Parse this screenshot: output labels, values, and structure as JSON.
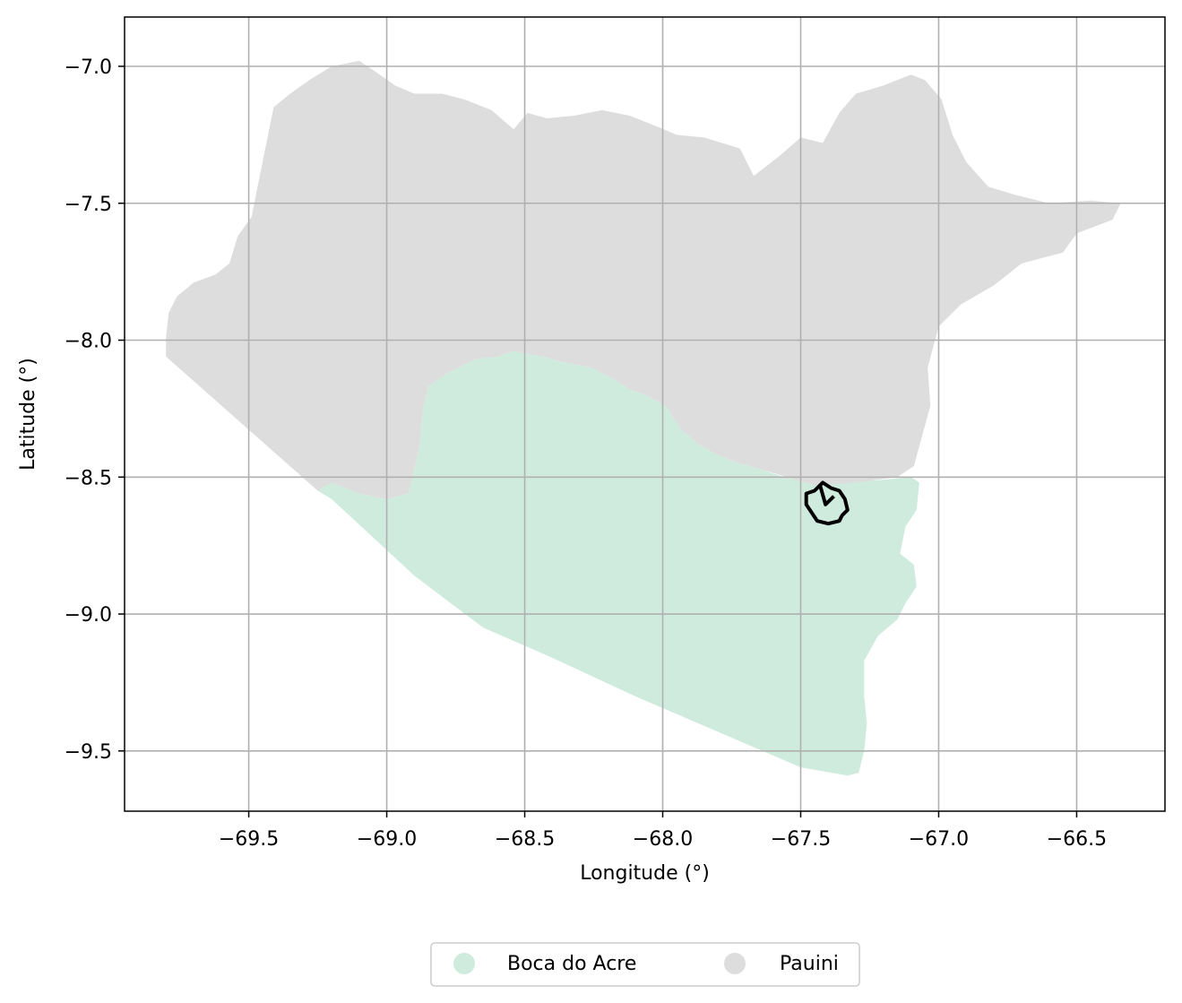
{
  "chart_data": {
    "type": "map",
    "xlabel": "Longitude (°)",
    "ylabel": "Latitude (°)",
    "xlim": [
      -69.95,
      -66.18
    ],
    "ylim": [
      -9.72,
      -6.82
    ],
    "xticks": [
      -69.5,
      -69.0,
      -68.5,
      -68.0,
      -67.5,
      -67.0,
      -66.5
    ],
    "yticks": [
      -7.0,
      -7.5,
      -8.0,
      -8.5,
      -9.0,
      -9.5
    ],
    "xtick_labels": [
      "−69.5",
      "−69.0",
      "−68.5",
      "−68.0",
      "−67.5",
      "−67.0",
      "−66.5"
    ],
    "ytick_labels": [
      "−7.0",
      "−7.5",
      "−8.0",
      "−8.5",
      "−9.0",
      "−9.5"
    ],
    "grid": true,
    "legend_position": "bottom-center",
    "regions": [
      {
        "name": "Boca do Acre",
        "color": "#cfebdd",
        "polygon": [
          [
            -69.2,
            -8.52
          ],
          [
            -69.1,
            -8.56
          ],
          [
            -69.0,
            -8.58
          ],
          [
            -68.92,
            -8.56
          ],
          [
            -68.9,
            -8.47
          ],
          [
            -68.88,
            -8.38
          ],
          [
            -68.87,
            -8.26
          ],
          [
            -68.85,
            -8.17
          ],
          [
            -68.78,
            -8.12
          ],
          [
            -68.68,
            -8.07
          ],
          [
            -68.6,
            -8.06
          ],
          [
            -68.54,
            -8.04
          ],
          [
            -68.44,
            -8.06
          ],
          [
            -68.36,
            -8.08
          ],
          [
            -68.26,
            -8.1
          ],
          [
            -68.18,
            -8.14
          ],
          [
            -68.12,
            -8.18
          ],
          [
            -68.06,
            -8.2
          ],
          [
            -67.99,
            -8.24
          ],
          [
            -67.93,
            -8.33
          ],
          [
            -67.87,
            -8.38
          ],
          [
            -67.8,
            -8.42
          ],
          [
            -67.72,
            -8.45
          ],
          [
            -67.65,
            -8.47
          ],
          [
            -67.56,
            -8.5
          ],
          [
            -67.45,
            -8.52
          ],
          [
            -67.35,
            -8.52
          ],
          [
            -67.2,
            -8.51
          ],
          [
            -67.1,
            -8.5
          ],
          [
            -67.07,
            -8.52
          ],
          [
            -67.08,
            -8.62
          ],
          [
            -67.12,
            -8.68
          ],
          [
            -67.14,
            -8.78
          ],
          [
            -67.09,
            -8.82
          ],
          [
            -67.08,
            -8.9
          ],
          [
            -67.12,
            -8.96
          ],
          [
            -67.15,
            -9.02
          ],
          [
            -67.22,
            -9.08
          ],
          [
            -67.27,
            -9.17
          ],
          [
            -67.27,
            -9.3
          ],
          [
            -67.26,
            -9.4
          ],
          [
            -67.27,
            -9.5
          ],
          [
            -67.29,
            -9.58
          ],
          [
            -67.33,
            -9.59
          ],
          [
            -67.5,
            -9.56
          ],
          [
            -67.8,
            -9.43
          ],
          [
            -68.1,
            -9.3
          ],
          [
            -68.4,
            -9.16
          ],
          [
            -68.65,
            -9.05
          ],
          [
            -68.9,
            -8.86
          ],
          [
            -69.2,
            -8.58
          ],
          [
            -69.25,
            -8.55
          ]
        ]
      },
      {
        "name": "Pauini",
        "color": "#dddddd",
        "polygon": [
          [
            -69.8,
            -8.06
          ],
          [
            -69.8,
            -7.99
          ],
          [
            -69.79,
            -7.9
          ],
          [
            -69.76,
            -7.84
          ],
          [
            -69.7,
            -7.79
          ],
          [
            -69.62,
            -7.76
          ],
          [
            -69.57,
            -7.72
          ],
          [
            -69.54,
            -7.62
          ],
          [
            -69.49,
            -7.55
          ],
          [
            -69.47,
            -7.45
          ],
          [
            -69.45,
            -7.35
          ],
          [
            -69.43,
            -7.25
          ],
          [
            -69.41,
            -7.15
          ],
          [
            -69.35,
            -7.1
          ],
          [
            -69.28,
            -7.05
          ],
          [
            -69.2,
            -7.0
          ],
          [
            -69.1,
            -6.98
          ],
          [
            -69.04,
            -7.02
          ],
          [
            -68.97,
            -7.07
          ],
          [
            -68.9,
            -7.1
          ],
          [
            -68.8,
            -7.1
          ],
          [
            -68.72,
            -7.12
          ],
          [
            -68.62,
            -7.16
          ],
          [
            -68.54,
            -7.23
          ],
          [
            -68.49,
            -7.17
          ],
          [
            -68.42,
            -7.19
          ],
          [
            -68.32,
            -7.18
          ],
          [
            -68.22,
            -7.16
          ],
          [
            -68.12,
            -7.18
          ],
          [
            -68.02,
            -7.22
          ],
          [
            -67.95,
            -7.25
          ],
          [
            -67.85,
            -7.26
          ],
          [
            -67.72,
            -7.3
          ],
          [
            -67.67,
            -7.4
          ],
          [
            -67.58,
            -7.33
          ],
          [
            -67.5,
            -7.26
          ],
          [
            -67.42,
            -7.28
          ],
          [
            -67.36,
            -7.17
          ],
          [
            -67.3,
            -7.1
          ],
          [
            -67.2,
            -7.07
          ],
          [
            -67.1,
            -7.03
          ],
          [
            -67.05,
            -7.05
          ],
          [
            -66.99,
            -7.12
          ],
          [
            -66.95,
            -7.25
          ],
          [
            -66.9,
            -7.35
          ],
          [
            -66.82,
            -7.44
          ],
          [
            -66.72,
            -7.47
          ],
          [
            -66.6,
            -7.5
          ],
          [
            -66.45,
            -7.49
          ],
          [
            -66.34,
            -7.5
          ],
          [
            -66.37,
            -7.56
          ],
          [
            -66.5,
            -7.61
          ],
          [
            -66.55,
            -7.68
          ],
          [
            -66.7,
            -7.72
          ],
          [
            -66.8,
            -7.8
          ],
          [
            -66.92,
            -7.87
          ],
          [
            -67.0,
            -7.95
          ],
          [
            -67.04,
            -8.1
          ],
          [
            -67.03,
            -8.24
          ],
          [
            -67.06,
            -8.35
          ],
          [
            -67.09,
            -8.46
          ],
          [
            -67.15,
            -8.5
          ],
          [
            -67.3,
            -8.52
          ],
          [
            -67.45,
            -8.53
          ],
          [
            -67.55,
            -8.5
          ],
          [
            -67.65,
            -8.47
          ],
          [
            -67.72,
            -8.45
          ],
          [
            -67.8,
            -8.42
          ],
          [
            -67.87,
            -8.38
          ],
          [
            -67.93,
            -8.33
          ],
          [
            -67.99,
            -8.24
          ],
          [
            -68.06,
            -8.2
          ],
          [
            -68.12,
            -8.18
          ],
          [
            -68.18,
            -8.14
          ],
          [
            -68.26,
            -8.1
          ],
          [
            -68.36,
            -8.08
          ],
          [
            -68.44,
            -8.06
          ],
          [
            -68.54,
            -8.04
          ],
          [
            -68.6,
            -8.06
          ],
          [
            -68.68,
            -8.07
          ],
          [
            -68.78,
            -8.12
          ],
          [
            -68.85,
            -8.17
          ],
          [
            -68.87,
            -8.26
          ],
          [
            -68.88,
            -8.38
          ],
          [
            -68.9,
            -8.47
          ],
          [
            -68.92,
            -8.56
          ],
          [
            -69.0,
            -8.58
          ],
          [
            -69.1,
            -8.56
          ],
          [
            -69.2,
            -8.52
          ],
          [
            -69.25,
            -8.55
          ]
        ]
      }
    ],
    "outline": {
      "color": "#000000",
      "polygon": [
        [
          -67.48,
          -8.56
        ],
        [
          -67.45,
          -8.55
        ],
        [
          -67.42,
          -8.52
        ],
        [
          -67.39,
          -8.54
        ],
        [
          -67.36,
          -8.55
        ],
        [
          -67.34,
          -8.58
        ],
        [
          -67.33,
          -8.62
        ],
        [
          -67.35,
          -8.64
        ],
        [
          -67.36,
          -8.66
        ],
        [
          -67.4,
          -8.67
        ],
        [
          -67.44,
          -8.66
        ],
        [
          -67.46,
          -8.63
        ],
        [
          -67.48,
          -8.6
        ]
      ],
      "inner": [
        [
          -67.43,
          -8.53
        ],
        [
          -67.41,
          -8.6
        ],
        [
          -67.38,
          -8.57
        ]
      ]
    },
    "legend": [
      {
        "label": "Boca do Acre",
        "color": "#cfebdd"
      },
      {
        "label": "Pauini",
        "color": "#dddddd"
      }
    ]
  }
}
